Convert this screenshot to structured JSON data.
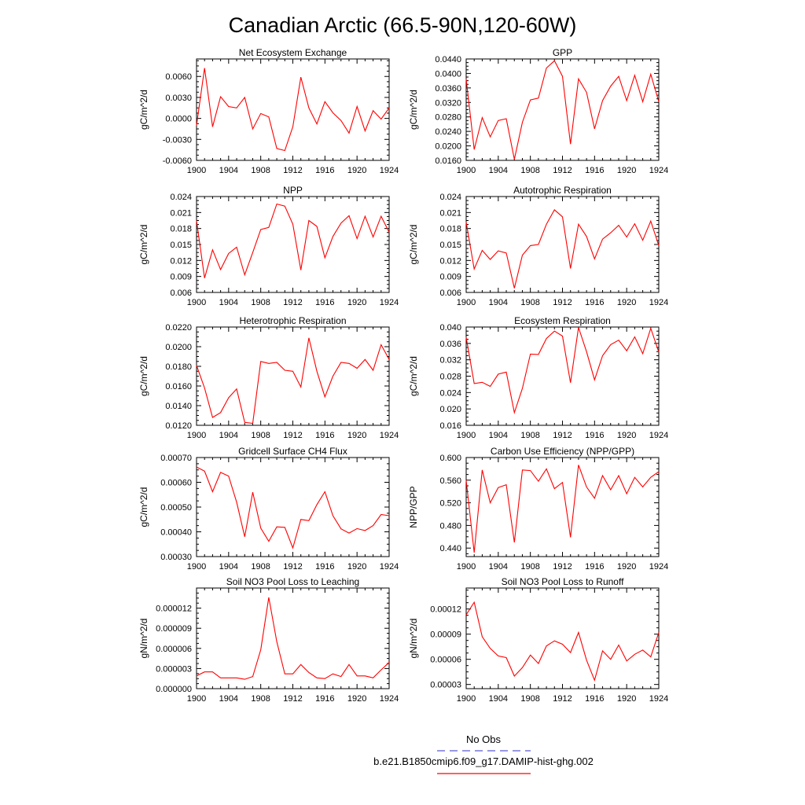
{
  "figure": {
    "title": "Canadian Arctic (66.5-90N,120-60W)",
    "line_color": "#ff0000",
    "obs_color": "#5a5ad0"
  },
  "legend": {
    "obs_label": "No Obs",
    "model_label": "b.e21.B1850cmip6.f09_g17.DAMIP-hist-ghg.002"
  },
  "chart_data": [
    {
      "type": "line",
      "title": "Net Ecosystem Exchange",
      "ylabel": "gC/m^2/d",
      "xlim": [
        1900,
        1924
      ],
      "xticks": [
        "1900",
        "1904",
        "1908",
        "1912",
        "1916",
        "1920",
        "1924"
      ],
      "ylim": [
        -0.006,
        0.0085
      ],
      "yticks": [
        "-0.0060",
        "-0.0030",
        "0.0000",
        "0.0030",
        "0.0060"
      ],
      "ytick_values": [
        -0.006,
        -0.003,
        0,
        0.003,
        0.006
      ],
      "x": [
        1900,
        1901,
        1902,
        1903,
        1904,
        1905,
        1906,
        1907,
        1908,
        1909,
        1910,
        1911,
        1912,
        1913,
        1914,
        1915,
        1916,
        1917,
        1918,
        1919,
        1920,
        1921,
        1922,
        1923,
        1924
      ],
      "values": [
        -0.001,
        0.0072,
        -0.0012,
        0.0031,
        0.0017,
        0.0015,
        0.003,
        -0.0015,
        0.0007,
        0.0002,
        -0.0043,
        -0.0046,
        -0.0012,
        0.0059,
        0.0015,
        -0.0008,
        0.0024,
        0.0008,
        -0.0003,
        -0.0021,
        0.0017,
        -0.0018,
        0.0011,
        -0.0001,
        0.0015
      ]
    },
    {
      "type": "line",
      "title": "GPP",
      "ylabel": "gC/m^2/d",
      "xlim": [
        1900,
        1924
      ],
      "xticks": [
        "1900",
        "1904",
        "1908",
        "1912",
        "1916",
        "1920",
        "1924"
      ],
      "ylim": [
        0.016,
        0.044
      ],
      "yticks": [
        "0.0160",
        "0.0200",
        "0.0240",
        "0.0280",
        "0.0320",
        "0.0360",
        "0.0400",
        "0.0440"
      ],
      "ytick_values": [
        0.016,
        0.02,
        0.024,
        0.028,
        0.032,
        0.036,
        0.04,
        0.044
      ],
      "x": [
        1900,
        1901,
        1902,
        1903,
        1904,
        1905,
        1906,
        1907,
        1908,
        1909,
        1910,
        1911,
        1912,
        1913,
        1914,
        1915,
        1916,
        1917,
        1918,
        1919,
        1920,
        1921,
        1922,
        1923,
        1924
      ],
      "values": [
        0.0385,
        0.019,
        0.0278,
        0.0225,
        0.027,
        0.0275,
        0.0163,
        0.0265,
        0.0327,
        0.0332,
        0.0415,
        0.0435,
        0.0392,
        0.0205,
        0.0385,
        0.0348,
        0.0247,
        0.0325,
        0.0365,
        0.0392,
        0.0325,
        0.0395,
        0.0322,
        0.0398,
        0.0322
      ]
    },
    {
      "type": "line",
      "title": "NPP",
      "ylabel": "gC/m^2/d",
      "xlim": [
        1900,
        1924
      ],
      "xticks": [
        "1900",
        "1904",
        "1908",
        "1912",
        "1916",
        "1920",
        "1924"
      ],
      "ylim": [
        0.006,
        0.024
      ],
      "yticks": [
        "0.006",
        "0.009",
        "0.012",
        "0.015",
        "0.018",
        "0.021",
        "0.024"
      ],
      "ytick_values": [
        0.006,
        0.009,
        0.012,
        0.015,
        0.018,
        0.021,
        0.024
      ],
      "x": [
        1900,
        1901,
        1902,
        1903,
        1904,
        1905,
        1906,
        1907,
        1908,
        1909,
        1910,
        1911,
        1912,
        1913,
        1914,
        1915,
        1916,
        1917,
        1918,
        1919,
        1920,
        1921,
        1922,
        1923,
        1924
      ],
      "values": [
        0.0195,
        0.0087,
        0.014,
        0.0103,
        0.0133,
        0.0145,
        0.0093,
        0.0135,
        0.0178,
        0.0182,
        0.0226,
        0.0222,
        0.0188,
        0.0102,
        0.0195,
        0.0184,
        0.0125,
        0.0165,
        0.019,
        0.0204,
        0.0161,
        0.0203,
        0.0164,
        0.0203,
        0.0173
      ]
    },
    {
      "type": "line",
      "title": "Autotrophic Respiration",
      "ylabel": "gC/m^2/d",
      "xlim": [
        1900,
        1924
      ],
      "xticks": [
        "1900",
        "1904",
        "1908",
        "1912",
        "1916",
        "1920",
        "1924"
      ],
      "ylim": [
        0.006,
        0.024
      ],
      "yticks": [
        "0.006",
        "0.009",
        "0.012",
        "0.015",
        "0.018",
        "0.021",
        "0.024"
      ],
      "ytick_values": [
        0.006,
        0.009,
        0.012,
        0.015,
        0.018,
        0.021,
        0.024
      ],
      "x": [
        1900,
        1901,
        1902,
        1903,
        1904,
        1905,
        1906,
        1907,
        1908,
        1909,
        1910,
        1911,
        1912,
        1913,
        1914,
        1915,
        1916,
        1917,
        1918,
        1919,
        1920,
        1921,
        1922,
        1923,
        1924
      ],
      "values": [
        0.0192,
        0.0104,
        0.0139,
        0.0122,
        0.0138,
        0.0134,
        0.0068,
        0.013,
        0.0148,
        0.015,
        0.0188,
        0.0215,
        0.0202,
        0.0105,
        0.0188,
        0.0165,
        0.0123,
        0.016,
        0.0172,
        0.0186,
        0.0164,
        0.0189,
        0.0158,
        0.0194,
        0.0148
      ]
    },
    {
      "type": "line",
      "title": "Heterotrophic Respiration",
      "ylabel": "gC/m^2/d",
      "xlim": [
        1900,
        1924
      ],
      "xticks": [
        "1900",
        "1904",
        "1908",
        "1912",
        "1916",
        "1920",
        "1924"
      ],
      "ylim": [
        0.012,
        0.022
      ],
      "yticks": [
        "0.0120",
        "0.0140",
        "0.0160",
        "0.0180",
        "0.0200",
        "0.0220"
      ],
      "ytick_values": [
        0.012,
        0.014,
        0.016,
        0.018,
        0.02,
        0.022
      ],
      "x": [
        1900,
        1901,
        1902,
        1903,
        1904,
        1905,
        1906,
        1907,
        1908,
        1909,
        1910,
        1911,
        1912,
        1913,
        1914,
        1915,
        1916,
        1917,
        1918,
        1919,
        1920,
        1921,
        1922,
        1923,
        1924
      ],
      "values": [
        0.0181,
        0.0158,
        0.0128,
        0.0133,
        0.0148,
        0.0157,
        0.0123,
        0.0122,
        0.0185,
        0.0183,
        0.0184,
        0.0176,
        0.0175,
        0.0159,
        0.0209,
        0.0175,
        0.0149,
        0.017,
        0.0184,
        0.0183,
        0.0178,
        0.0187,
        0.0176,
        0.0202,
        0.0187
      ]
    },
    {
      "type": "line",
      "title": "Ecosystem Respiration",
      "ylabel": "gC/m^2/d",
      "xlim": [
        1900,
        1924
      ],
      "xticks": [
        "1900",
        "1904",
        "1908",
        "1912",
        "1916",
        "1920",
        "1924"
      ],
      "ylim": [
        0.016,
        0.04
      ],
      "yticks": [
        "0.016",
        "0.020",
        "0.024",
        "0.028",
        "0.032",
        "0.036",
        "0.040"
      ],
      "ytick_values": [
        0.016,
        0.02,
        0.024,
        0.028,
        0.032,
        0.036,
        0.04
      ],
      "x": [
        1900,
        1901,
        1902,
        1903,
        1904,
        1905,
        1906,
        1907,
        1908,
        1909,
        1910,
        1911,
        1912,
        1913,
        1914,
        1915,
        1916,
        1917,
        1918,
        1919,
        1920,
        1921,
        1922,
        1923,
        1924
      ],
      "values": [
        0.0375,
        0.0262,
        0.0265,
        0.0255,
        0.0285,
        0.029,
        0.0191,
        0.025,
        0.0334,
        0.0333,
        0.0372,
        0.039,
        0.0378,
        0.0264,
        0.0399,
        0.034,
        0.0271,
        0.033,
        0.0357,
        0.0368,
        0.0342,
        0.0376,
        0.0335,
        0.0397,
        0.0339
      ]
    },
    {
      "type": "line",
      "title": "Gridcell Surface CH4 Flux",
      "ylabel": "gC/m^2/d",
      "xlim": [
        1900,
        1924
      ],
      "xticks": [
        "1900",
        "1904",
        "1908",
        "1912",
        "1916",
        "1920",
        "1924"
      ],
      "ylim": [
        0.0003,
        0.0007
      ],
      "yticks": [
        "0.00030",
        "0.00040",
        "0.00050",
        "0.00060",
        "0.00070"
      ],
      "ytick_values": [
        0.0003,
        0.0004,
        0.0005,
        0.0006,
        0.0007
      ],
      "x": [
        1900,
        1901,
        1902,
        1903,
        1904,
        1905,
        1906,
        1907,
        1908,
        1909,
        1910,
        1911,
        1912,
        1913,
        1914,
        1915,
        1916,
        1917,
        1918,
        1919,
        1920,
        1921,
        1922,
        1923,
        1924
      ],
      "values": [
        0.000662,
        0.000645,
        0.000562,
        0.00064,
        0.000625,
        0.00052,
        0.00038,
        0.00056,
        0.000415,
        0.000362,
        0.00042,
        0.000418,
        0.000335,
        0.00045,
        0.000445,
        0.00051,
        0.000562,
        0.000465,
        0.000412,
        0.000395,
        0.000413,
        0.000405,
        0.000425,
        0.00047,
        0.000465
      ]
    },
    {
      "type": "line",
      "title": "Carbon Use Efficiency (NPP/GPP)",
      "ylabel": "NPP/GPP",
      "xlim": [
        1900,
        1924
      ],
      "xticks": [
        "1900",
        "1904",
        "1908",
        "1912",
        "1916",
        "1920",
        "1924"
      ],
      "ylim": [
        0.425,
        0.6
      ],
      "yticks": [
        "0.440",
        "0.480",
        "0.520",
        "0.560",
        "0.600"
      ],
      "ytick_values": [
        0.44,
        0.48,
        0.52,
        0.56,
        0.6
      ],
      "x": [
        1900,
        1901,
        1902,
        1903,
        1904,
        1905,
        1906,
        1907,
        1908,
        1909,
        1910,
        1911,
        1912,
        1913,
        1914,
        1915,
        1916,
        1917,
        1918,
        1919,
        1920,
        1921,
        1922,
        1923,
        1924
      ],
      "values": [
        0.56,
        0.432,
        0.578,
        0.52,
        0.547,
        0.552,
        0.45,
        0.578,
        0.577,
        0.558,
        0.58,
        0.545,
        0.556,
        0.459,
        0.587,
        0.548,
        0.528,
        0.568,
        0.543,
        0.568,
        0.536,
        0.565,
        0.548,
        0.565,
        0.575
      ]
    },
    {
      "type": "line",
      "title": "Soil NO3 Pool Loss to Leaching",
      "ylabel": "gN/m^2/d",
      "xlim": [
        1900,
        1924
      ],
      "xticks": [
        "1900",
        "1904",
        "1908",
        "1912",
        "1916",
        "1920",
        "1924"
      ],
      "ylim": [
        0.0,
        1.5e-05
      ],
      "yticks": [
        "0.000000",
        "0.000003",
        "0.000006",
        "0.000009",
        "0.000012"
      ],
      "ytick_values": [
        0,
        3e-06,
        6e-06,
        9e-06,
        1.2e-05
      ],
      "x": [
        1900,
        1901,
        1902,
        1903,
        1904,
        1905,
        1906,
        1907,
        1908,
        1909,
        1910,
        1911,
        1912,
        1913,
        1914,
        1915,
        1916,
        1917,
        1918,
        1919,
        1920,
        1921,
        1922,
        1923,
        1924
      ],
      "values": [
        1.9e-06,
        2.5e-06,
        2.5e-06,
        1.6e-06,
        1.6e-06,
        1.6e-06,
        1.4e-06,
        1.8e-06,
        5.8e-06,
        1.36e-05,
        7e-06,
        2.2e-06,
        2.2e-06,
        3.6e-06,
        2.4e-06,
        1.6e-06,
        1.5e-06,
        2.2e-06,
        1.8e-06,
        3.6e-06,
        1.9e-06,
        1.9e-06,
        1.6e-06,
        2.8e-06,
        3.9e-06
      ]
    },
    {
      "type": "line",
      "title": "Soil NO3 Pool Loss to Runoff",
      "ylabel": "gN/m^2/d",
      "xlim": [
        1900,
        1924
      ],
      "xticks": [
        "1900",
        "1904",
        "1908",
        "1912",
        "1916",
        "1920",
        "1924"
      ],
      "ylim": [
        2.5e-05,
        0.000145
      ],
      "yticks": [
        "0.00003",
        "0.00006",
        "0.00009",
        "0.00012"
      ],
      "ytick_values": [
        3e-05,
        6e-05,
        9e-05,
        0.00012
      ],
      "x": [
        1900,
        1901,
        1902,
        1903,
        1904,
        1905,
        1906,
        1907,
        1908,
        1909,
        1910,
        1911,
        1912,
        1913,
        1914,
        1915,
        1916,
        1917,
        1918,
        1919,
        1920,
        1921,
        1922,
        1923,
        1924
      ],
      "values": [
        0.000113,
        0.000128,
        8.7e-05,
        7.3e-05,
        6.4e-05,
        6.2e-05,
        4e-05,
        5e-05,
        6.5e-05,
        5.5e-05,
        7.6e-05,
        8.2e-05,
        7.8e-05,
        6.8e-05,
        9.2e-05,
        5.9e-05,
        3.5e-05,
        7e-05,
        6e-05,
        7.7e-05,
        5.8e-05,
        6.6e-05,
        7.1e-05,
        6.3e-05,
        9.2e-05
      ]
    }
  ]
}
